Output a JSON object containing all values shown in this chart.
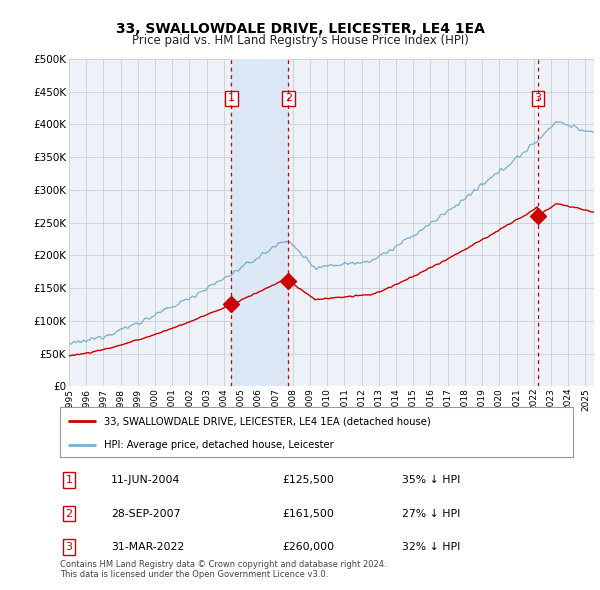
{
  "title": "33, SWALLOWDALE DRIVE, LEICESTER, LE4 1EA",
  "subtitle": "Price paid vs. HM Land Registry's House Price Index (HPI)",
  "ylim": [
    0,
    500000
  ],
  "xlim_start": 1995.0,
  "xlim_end": 2025.5,
  "hpi_color": "#7bafd4",
  "price_color": "#cc0000",
  "vline_color": "#cc0000",
  "shade_color": "#dce8f5",
  "transaction_numbers": [
    1,
    2,
    3
  ],
  "transaction_dates_decimal": [
    2004.44,
    2007.74,
    2022.25
  ],
  "transaction_prices": [
    125500,
    161500,
    260000
  ],
  "transaction_dates_str": [
    "11-JUN-2004",
    "28-SEP-2007",
    "31-MAR-2022"
  ],
  "transaction_pct_below": [
    "35%",
    "27%",
    "32%"
  ],
  "legend_property": "33, SWALLOWDALE DRIVE, LEICESTER, LE4 1EA (detached house)",
  "legend_hpi": "HPI: Average price, detached house, Leicester",
  "footnote": "Contains HM Land Registry data © Crown copyright and database right 2024.\nThis data is licensed under the Open Government Licence v3.0.",
  "background_color": "#ffffff",
  "plot_bg_color": "#eef2f8",
  "grid_color": "#c8cdd8",
  "box_edge_color": "#cc0000"
}
